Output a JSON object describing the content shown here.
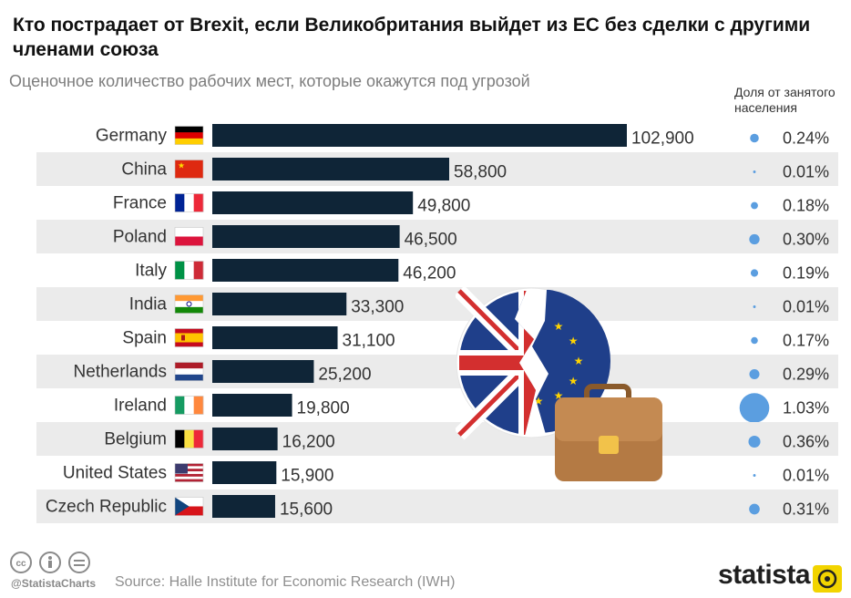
{
  "header": {
    "title": "Кто пострадает от Brexit, если Великобритания выйдет из ЕС без сделки с другими членами союза",
    "subtitle": "Оценочное количество рабочих мест, которые окажутся под угрозой",
    "share_header": "Доля от занятого населения"
  },
  "footer": {
    "handle": "@StatistaCharts",
    "source": "Source: Halle Institute for Economic Research (IWH)",
    "brand": "statista"
  },
  "colors": {
    "bar": "#0f2537",
    "row_stripe": "#ebebeb",
    "bubble": "#5b9ee0"
  },
  "chart_data": {
    "type": "bar",
    "orientation": "horizontal",
    "categories": [
      "Germany",
      "China",
      "France",
      "Poland",
      "Italy",
      "India",
      "Spain",
      "Netherlands",
      "Ireland",
      "Belgium",
      "United States",
      "Czech Republic"
    ],
    "values": [
      102900,
      58800,
      49800,
      46500,
      46200,
      33300,
      31100,
      25200,
      19800,
      16200,
      15900,
      15600
    ],
    "value_labels": [
      "102,900",
      "58,800",
      "49,800",
      "46,500",
      "46,200",
      "33,300",
      "31,100",
      "25,200",
      "19,800",
      "16,200",
      "15,900",
      "15,600"
    ],
    "share_values": [
      0.24,
      0.01,
      0.18,
      0.3,
      0.19,
      0.01,
      0.17,
      0.29,
      1.03,
      0.36,
      0.01,
      0.31
    ],
    "share_labels": [
      "0.24%",
      "0.01%",
      "0.18%",
      "0.30%",
      "0.19%",
      "0.01%",
      "0.17%",
      "0.29%",
      "1.03%",
      "0.36%",
      "0.01%",
      "0.31%"
    ],
    "flags": [
      "flag-germany",
      "flag-china",
      "flag-france",
      "flag-poland",
      "flag-italy",
      "flag-india",
      "flag-spain",
      "flag-netherlands",
      "flag-ireland",
      "flag-belgium",
      "flag-united-states",
      "flag-czech-republic"
    ],
    "xlim": [
      0,
      102900
    ],
    "grid": false
  }
}
